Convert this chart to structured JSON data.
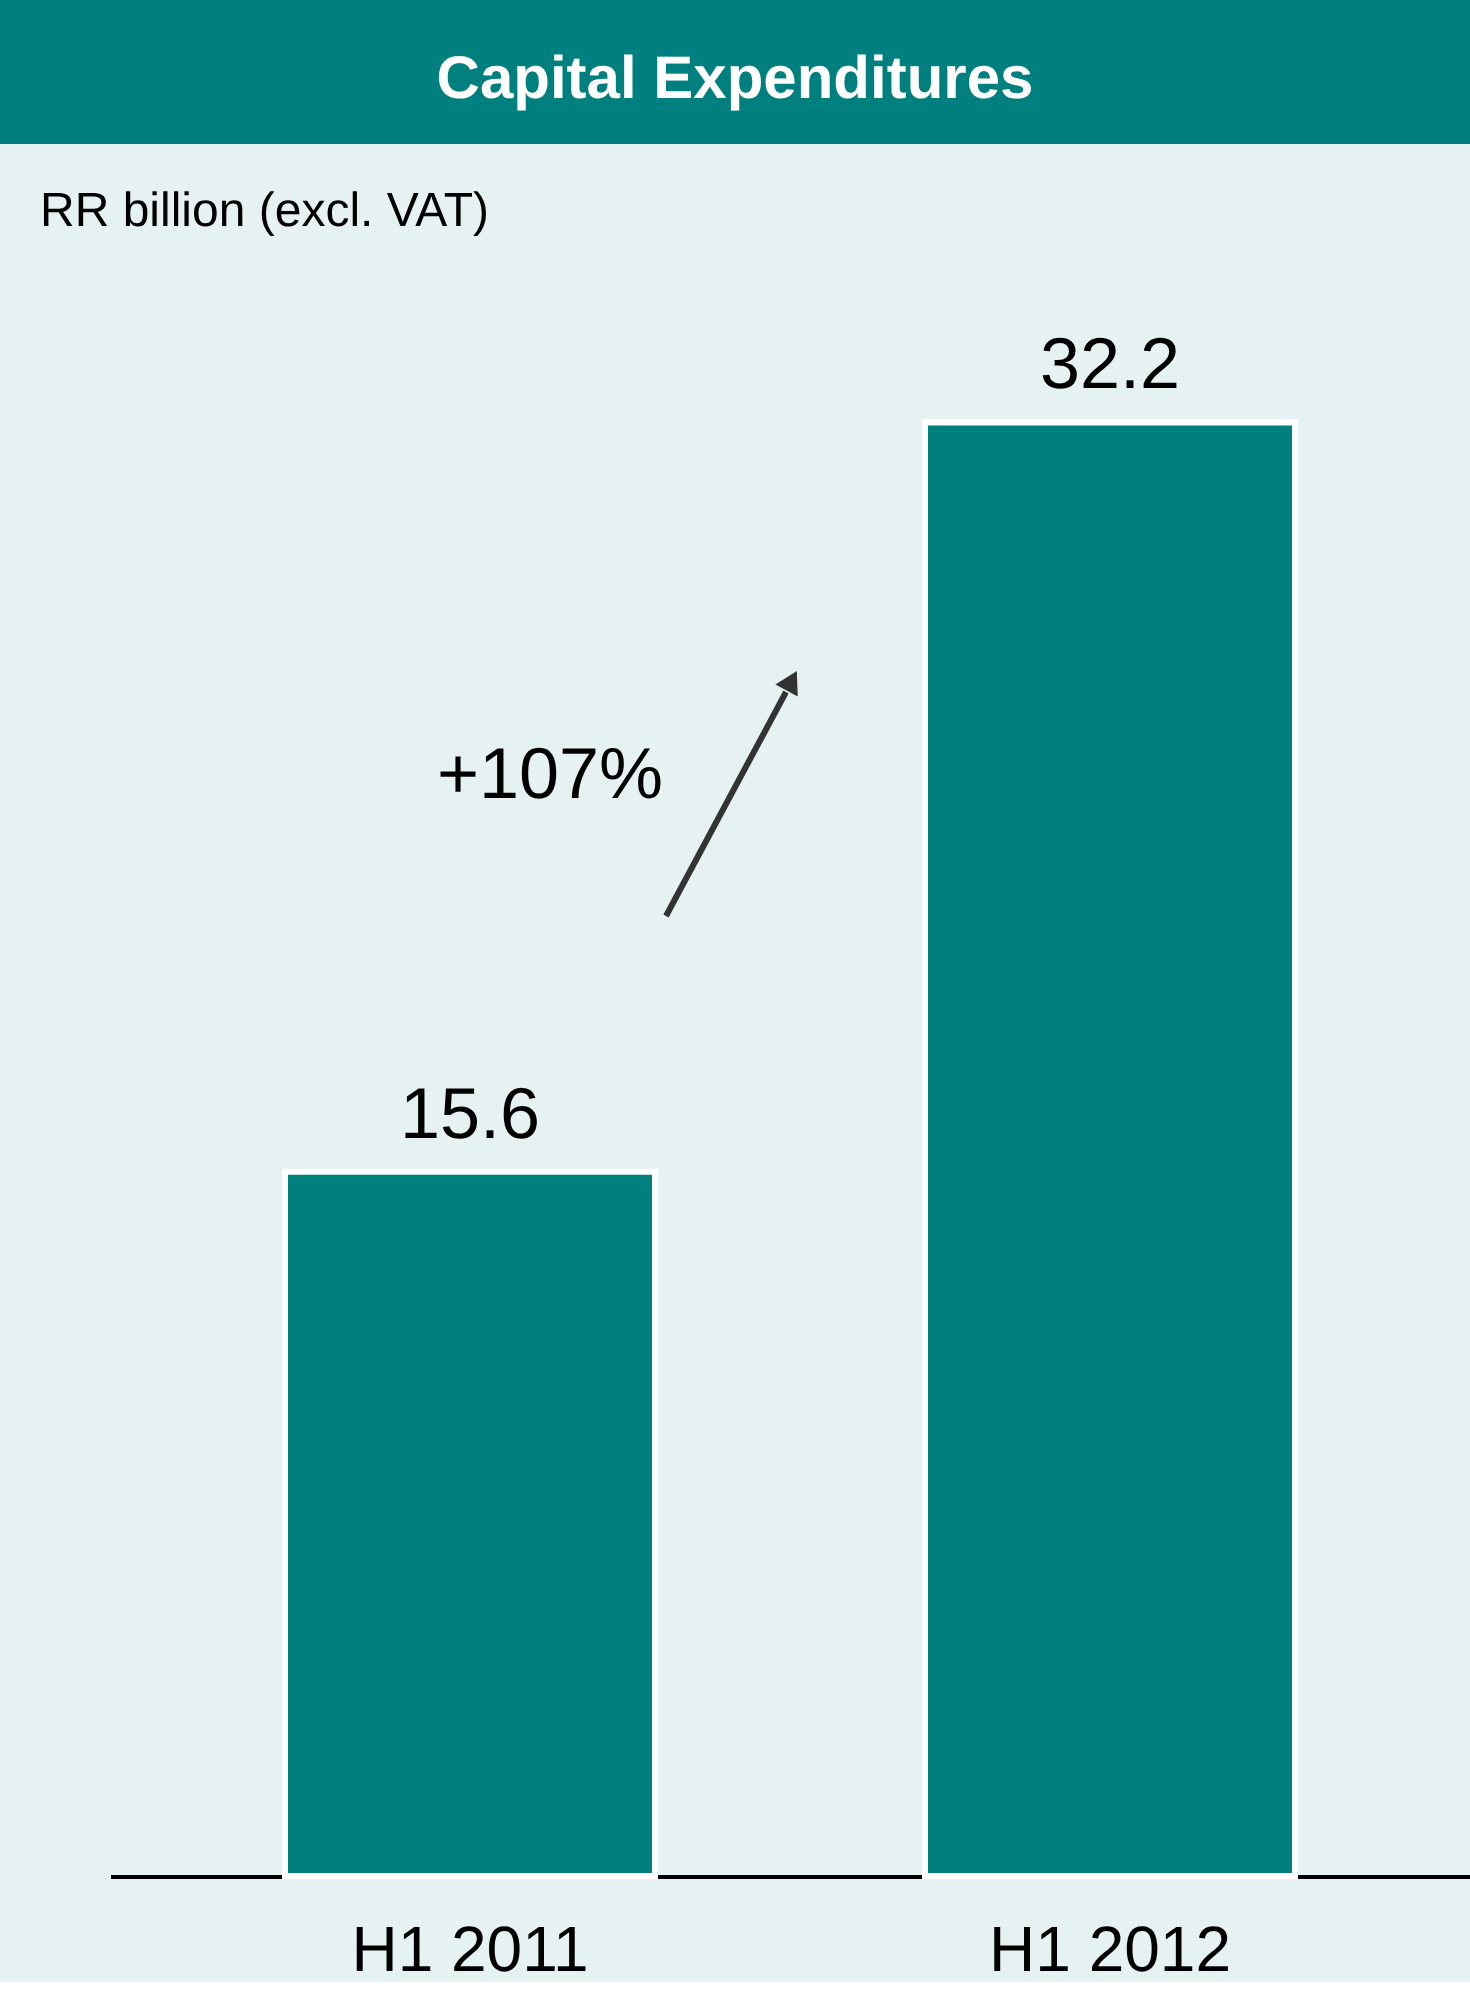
{
  "chart_data": {
    "type": "bar",
    "title": "Capital  Expenditures",
    "subtitle": "RR billion (excl. VAT)",
    "categories": [
      "H1 2011",
      "H1 2012"
    ],
    "values": [
      15.6,
      32.2
    ],
    "color": "#007f7f",
    "data_labels": true,
    "annotations": [
      "+107%"
    ]
  }
}
